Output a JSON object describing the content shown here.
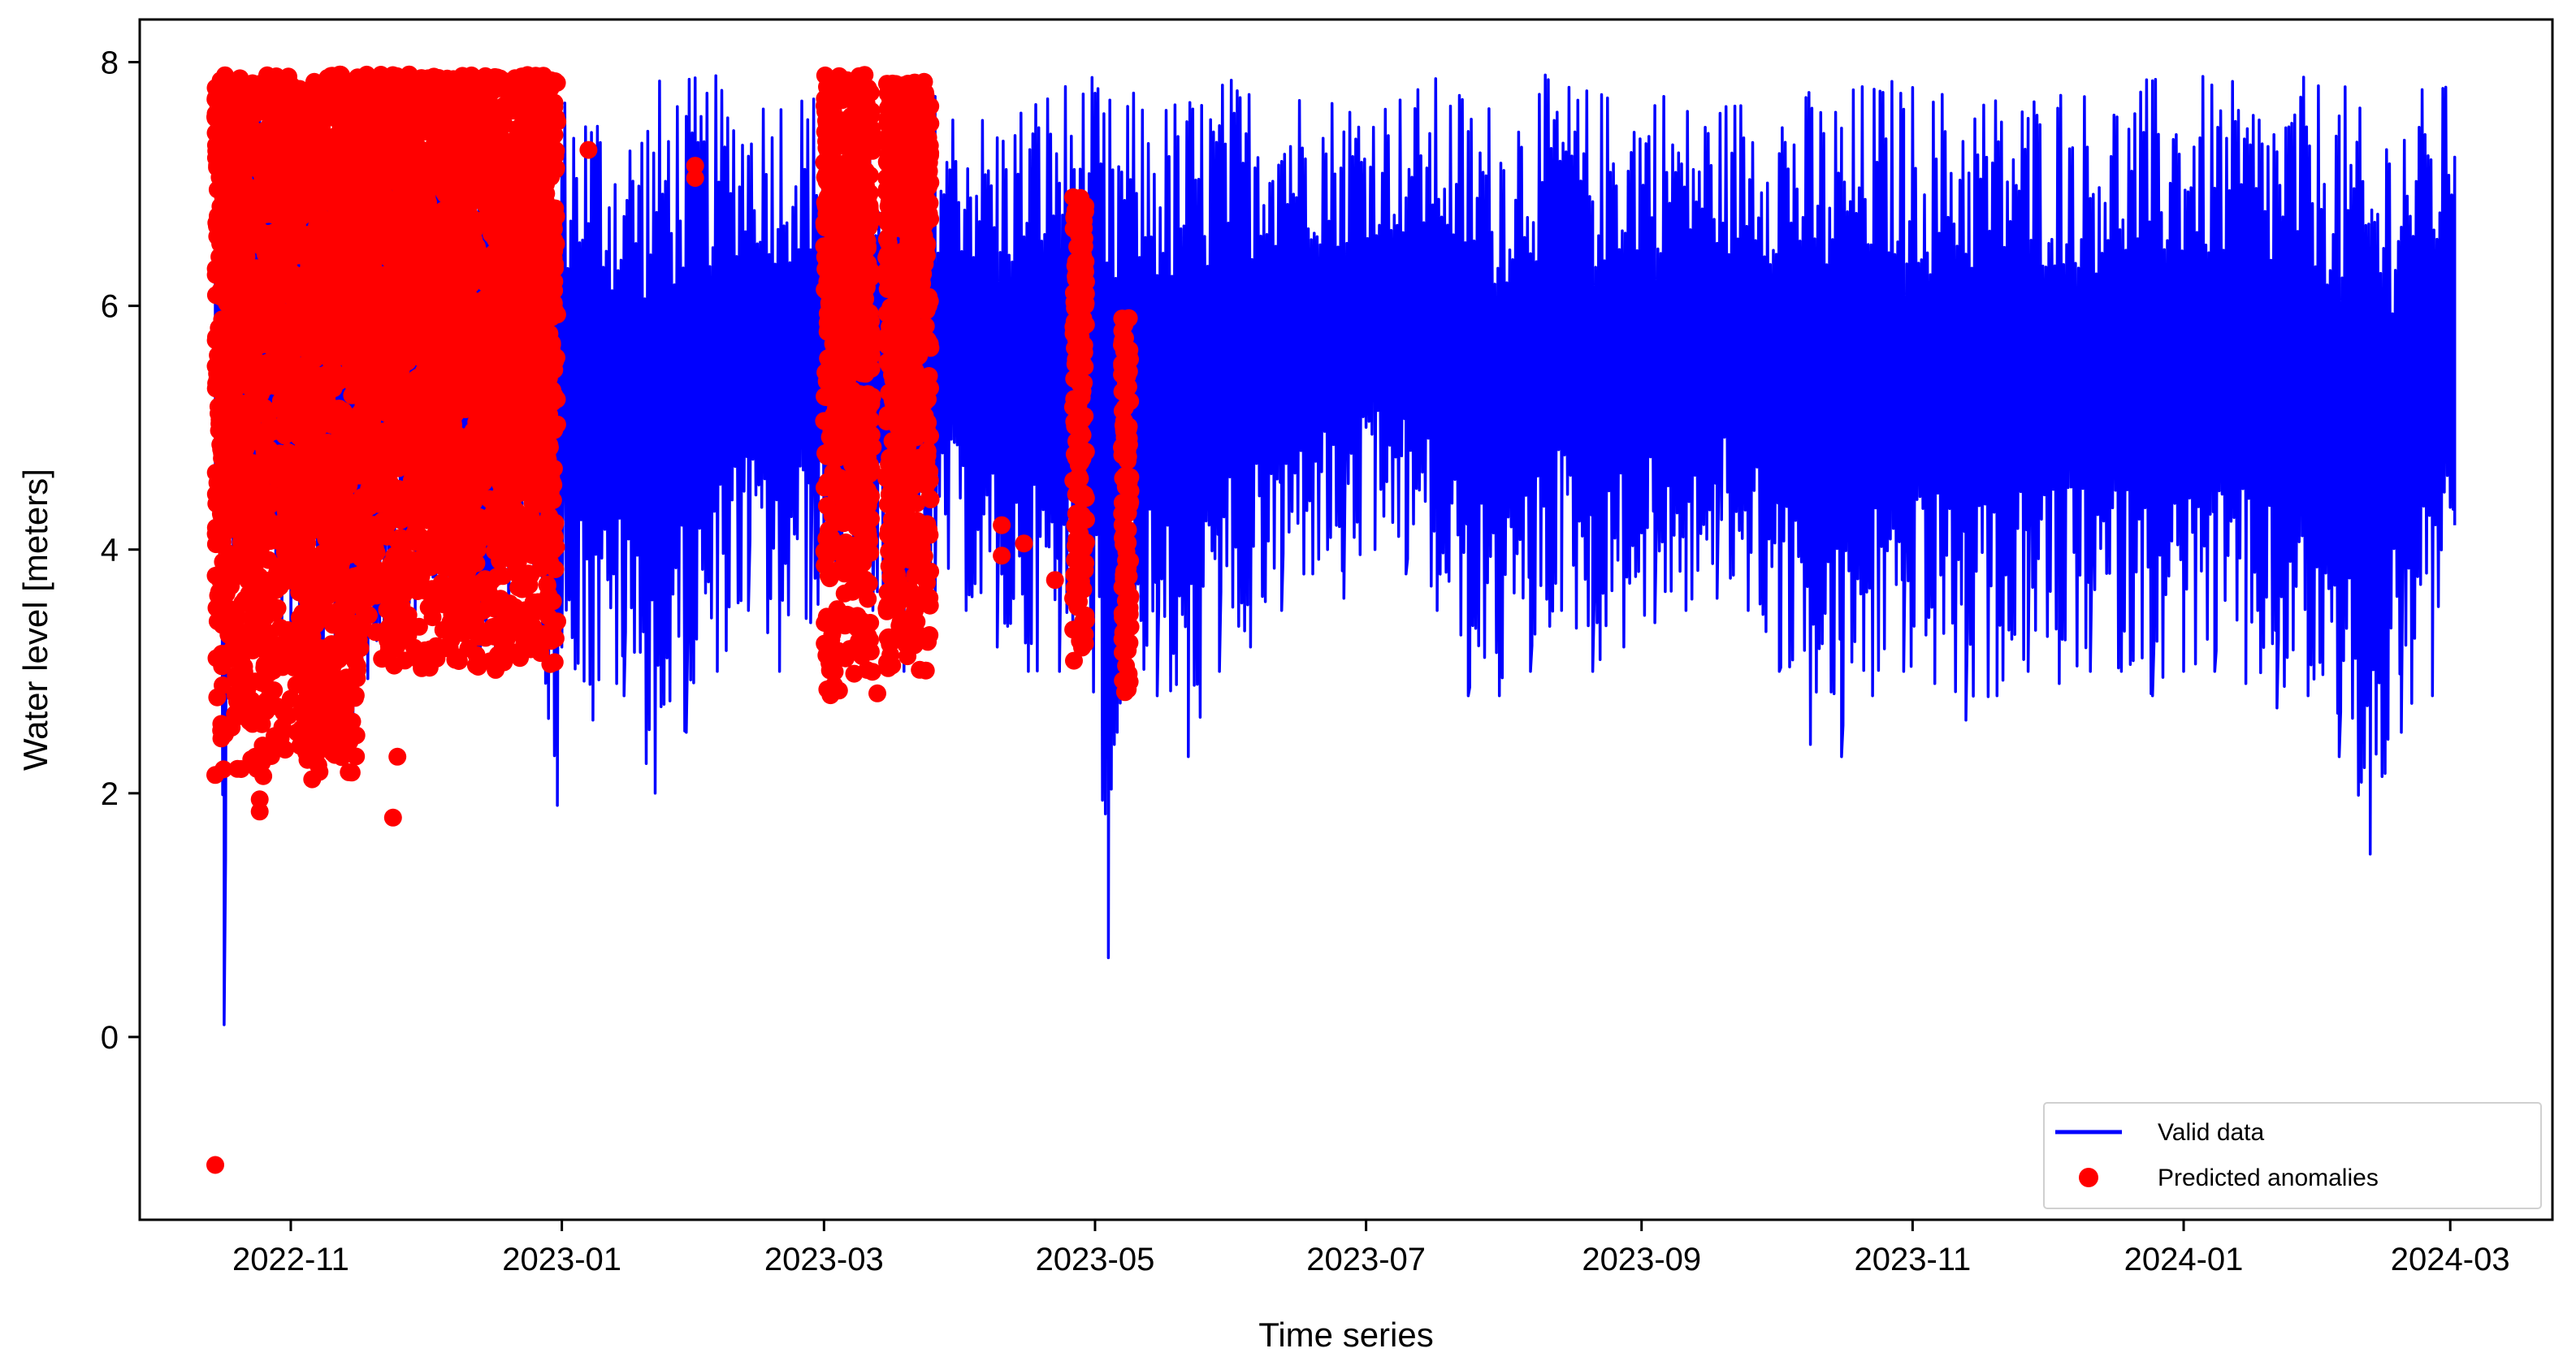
{
  "chart_data": {
    "type": "line",
    "xlabel": "Time series",
    "ylabel": "Water level [meters]",
    "xlim": [
      "2022-09-28",
      "2024-03-24"
    ],
    "ylim": [
      -1.5,
      8.35
    ],
    "x_ticks": [
      "2022-11",
      "2023-01",
      "2023-03",
      "2023-05",
      "2023-07",
      "2023-09",
      "2023-11",
      "2024-01",
      "2024-03"
    ],
    "y_ticks": [
      0,
      2,
      4,
      6,
      8
    ],
    "legend_position": "bottom-right",
    "colors": {
      "valid": "#0000ff",
      "anomaly": "#ff0000",
      "axes": "#000000"
    },
    "series": [
      {
        "name": "Valid data",
        "kind": "line",
        "color": "#0000ff",
        "x": [
          "2022-10-15",
          "2022-10-16",
          "2022-10-17",
          "2022-10-18",
          "2022-10-19",
          "2022-10-20",
          "2022-10-25",
          "2022-11-01",
          "2022-11-08",
          "2022-11-15",
          "2022-11-22",
          "2022-11-29",
          "2022-12-06",
          "2022-12-13",
          "2022-12-17",
          "2022-12-20",
          "2022-12-25",
          "2022-12-31",
          "2023-01-01",
          "2023-01-08",
          "2023-01-15",
          "2023-01-22",
          "2023-01-29",
          "2023-02-05",
          "2023-02-12",
          "2023-02-19",
          "2023-02-26",
          "2023-03-05",
          "2023-03-12",
          "2023-03-19",
          "2023-03-26",
          "2023-04-02",
          "2023-04-09",
          "2023-04-16",
          "2023-04-23",
          "2023-04-30",
          "2023-05-04",
          "2023-05-06",
          "2023-05-08",
          "2023-05-15",
          "2023-05-22",
          "2023-05-29",
          "2023-06-05",
          "2023-06-12",
          "2023-06-19",
          "2023-06-26",
          "2023-07-03",
          "2023-07-10",
          "2023-07-17",
          "2023-07-24",
          "2023-07-31",
          "2023-08-07",
          "2023-08-14",
          "2023-08-21",
          "2023-08-28",
          "2023-09-04",
          "2023-09-11",
          "2023-09-18",
          "2023-09-25",
          "2023-10-02",
          "2023-10-09",
          "2023-10-16",
          "2023-10-23",
          "2023-10-30",
          "2023-11-06",
          "2023-11-13",
          "2023-11-20",
          "2023-11-27",
          "2023-12-04",
          "2023-12-11",
          "2023-12-18",
          "2023-12-25",
          "2024-01-01",
          "2024-01-08",
          "2024-01-15",
          "2024-01-22",
          "2024-01-29",
          "2024-02-05",
          "2024-02-12",
          "2024-02-19",
          "2024-02-26",
          "2024-03-02"
        ],
        "low": [
          4.5,
          4.0,
          0.1,
          3.5,
          4.0,
          3.8,
          3.5,
          3.0,
          2.8,
          2.5,
          3.2,
          3.5,
          3.2,
          3.0,
          3.0,
          3.5,
          4.0,
          1.9,
          3.2,
          2.6,
          2.8,
          2.0,
          2.5,
          3.0,
          3.5,
          3.0,
          3.4,
          3.8,
          3.5,
          3.0,
          3.6,
          3.5,
          3.2,
          3.0,
          3.0,
          3.2,
          0.65,
          2.5,
          3.0,
          2.8,
          2.3,
          3.0,
          3.2,
          3.5,
          3.8,
          3.6,
          4.0,
          3.8,
          3.5,
          2.8,
          2.8,
          3.0,
          3.5,
          3.0,
          3.2,
          3.4,
          3.5,
          3.6,
          3.5,
          3.0,
          2.4,
          2.3,
          2.8,
          3.0,
          2.9,
          2.6,
          2.8,
          3.0,
          2.9,
          3.0,
          3.0,
          2.8,
          3.0,
          3.0,
          2.9,
          2.7,
          2.8,
          2.3,
          1.5,
          2.5,
          2.8,
          4.2
        ],
        "high": [
          6.5,
          6.8,
          7.0,
          7.5,
          7.8,
          7.9,
          7.9,
          7.9,
          7.8,
          7.8,
          7.9,
          7.9,
          7.9,
          7.8,
          7.7,
          7.8,
          7.8,
          7.2,
          7.8,
          7.8,
          7.5,
          7.9,
          7.9,
          7.9,
          7.8,
          7.9,
          7.8,
          7.9,
          7.8,
          7.8,
          7.8,
          7.7,
          7.6,
          7.8,
          7.9,
          7.9,
          7.8,
          7.6,
          7.8,
          7.7,
          7.8,
          7.9,
          7.9,
          7.9,
          7.8,
          7.8,
          7.8,
          7.8,
          7.9,
          7.8,
          7.7,
          7.9,
          7.9,
          7.8,
          7.8,
          7.9,
          7.7,
          7.7,
          7.8,
          7.9,
          7.8,
          7.8,
          7.9,
          7.9,
          7.8,
          7.9,
          7.8,
          7.8,
          7.9,
          7.8,
          7.8,
          7.9,
          7.9,
          7.9,
          7.8,
          7.8,
          7.9,
          7.9,
          7.5,
          7.8,
          7.8,
          7.9
        ]
      },
      {
        "name": "Predicted anomalies",
        "kind": "scatter",
        "color": "#ff0000",
        "clusters": [
          {
            "start": "2022-10-15",
            "end": "2022-11-16",
            "ymin": 2.1,
            "ymax": 7.9
          },
          {
            "start": "2022-11-16",
            "end": "2022-12-31",
            "ymin": 3.0,
            "ymax": 7.9
          },
          {
            "start": "2023-03-01",
            "end": "2023-03-12",
            "ymin": 2.8,
            "ymax": 7.9
          },
          {
            "start": "2023-03-15",
            "end": "2023-03-25",
            "ymin": 3.0,
            "ymax": 7.85
          },
          {
            "start": "2023-04-26",
            "end": "2023-04-29",
            "ymin": 3.0,
            "ymax": 6.9
          },
          {
            "start": "2023-05-07",
            "end": "2023-05-09",
            "ymin": 2.7,
            "ymax": 5.9
          }
        ],
        "points": [
          {
            "x": "2022-10-15",
            "y": -1.05
          },
          {
            "x": "2022-10-15",
            "y": 2.15
          },
          {
            "x": "2022-10-15",
            "y": 7.55
          },
          {
            "x": "2022-10-16",
            "y": 7.3
          },
          {
            "x": "2022-10-20",
            "y": 2.2
          },
          {
            "x": "2022-10-24",
            "y": 2.3
          },
          {
            "x": "2022-10-25",
            "y": 1.95
          },
          {
            "x": "2022-10-25",
            "y": 1.85
          },
          {
            "x": "2022-11-24",
            "y": 1.8
          },
          {
            "x": "2022-11-25",
            "y": 2.3
          },
          {
            "x": "2023-01-07",
            "y": 7.28
          },
          {
            "x": "2023-01-31",
            "y": 7.15
          },
          {
            "x": "2023-01-31",
            "y": 7.05
          },
          {
            "x": "2023-03-13",
            "y": 2.82
          },
          {
            "x": "2023-04-10",
            "y": 4.2
          },
          {
            "x": "2023-04-10",
            "y": 3.95
          },
          {
            "x": "2023-04-15",
            "y": 4.05
          },
          {
            "x": "2023-04-22",
            "y": 3.75
          }
        ]
      }
    ]
  }
}
